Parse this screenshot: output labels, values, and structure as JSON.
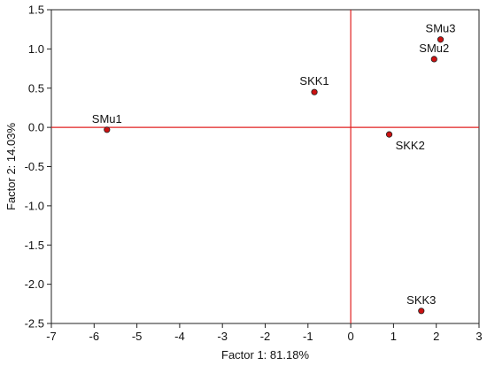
{
  "chart_data": {
    "type": "scatter",
    "title": "",
    "xlabel": "Factor 1: 81.18%",
    "ylabel": "Factor 2: 14.03%",
    "xlim": [
      -7,
      3
    ],
    "ylim": [
      -2.5,
      1.5
    ],
    "xticks": [
      -7,
      -6,
      -5,
      -4,
      -3,
      -2,
      -1,
      0,
      1,
      2,
      3
    ],
    "yticks": [
      -2.5,
      -2.0,
      -1.5,
      -1.0,
      -0.5,
      0.0,
      0.5,
      1.0,
      1.5
    ],
    "ytick_labels": [
      "-2.5",
      "-2.0",
      "-1.5",
      "-1.0",
      "-0.5",
      "0.0",
      "0.5",
      "1.0",
      "1.5"
    ],
    "grid": false,
    "reference_lines": {
      "x": 0,
      "y": 0,
      "color": "#e02020"
    },
    "point_color": "#cc1111",
    "points": [
      {
        "label": "SMu1",
        "x": -5.7,
        "y": -0.03,
        "label_pos": "above"
      },
      {
        "label": "SKK1",
        "x": -0.85,
        "y": 0.45,
        "label_pos": "above"
      },
      {
        "label": "SKK2",
        "x": 0.9,
        "y": -0.09,
        "label_pos": "below-right"
      },
      {
        "label": "SMu3",
        "x": 2.1,
        "y": 1.12,
        "label_pos": "above"
      },
      {
        "label": "SMu2",
        "x": 1.95,
        "y": 0.87,
        "label_pos": "above"
      },
      {
        "label": "SKK3",
        "x": 1.65,
        "y": -2.34,
        "label_pos": "above"
      }
    ]
  }
}
